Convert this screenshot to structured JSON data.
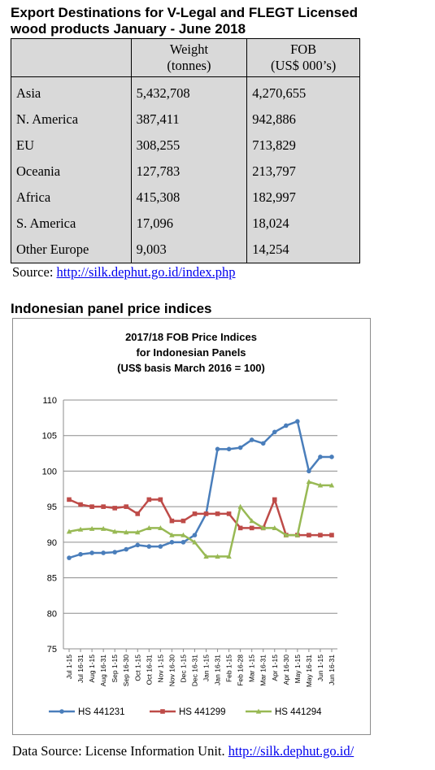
{
  "export_section": {
    "title_line1": "Export Destinations for V-Legal and FLEGT Licensed",
    "title_line2": "wood products January - June 2018",
    "headers": {
      "weight_line1": "Weight",
      "weight_line2": "(tonnes)",
      "fob_line1": "FOB",
      "fob_line2": "(US$ 000’s)"
    },
    "rows": [
      {
        "region": "Asia",
        "weight": "5,432,708",
        "fob": "4,270,655"
      },
      {
        "region": "N. America",
        "weight": "387,411",
        "fob": "942,886"
      },
      {
        "region": "EU",
        "weight": "308,255",
        "fob": "713,829"
      },
      {
        "region": "Oceania",
        "weight": "127,783",
        "fob": "213,797"
      },
      {
        "region": "Africa",
        "weight": "415,308",
        "fob": "182,997"
      },
      {
        "region": "S. America",
        "weight": "17,096",
        "fob": "18,024"
      },
      {
        "region": "Other Europe",
        "weight": "9,003",
        "fob": "14,254"
      }
    ],
    "source_label": "Source:",
    "source_url": "http://silk.dephut.go.id/index.php"
  },
  "panel_section": {
    "heading": "Indonesian panel price indices",
    "data_source_label": "Data Source: License Information Unit.",
    "data_source_url": "http://silk.dephut.go.id/"
  },
  "colors": {
    "hs441231": "#4a7ebb",
    "hs441299": "#be4b48",
    "hs441294": "#98b954",
    "grid": "#8c8c8c",
    "table_bg": "#d9d9d9"
  },
  "chart_data": {
    "type": "line",
    "title_lines": [
      "2017/18 FOB Price Indices",
      "for Indonesian Panels",
      "(US$ basis March 2016 = 100)"
    ],
    "categories": [
      "Jul 1-15",
      "Jul 16-31",
      "Aug 1-15",
      "Aug 16-31",
      "Sep 1-15",
      "Sep 16-30",
      "Oct 1-15",
      "Oct 16-31",
      "Nov 1-15",
      "Nov 16-30",
      "Dec 1-15",
      "Dec 16-31",
      "Jan 1-15",
      "Jan 16-31",
      "Feb 1-15",
      "Feb 16-28",
      "Mar 1-15",
      "Mar 16-31",
      "Apr 1-15",
      "Apr 16-30",
      "May 1-15",
      "May 16-31",
      "Jun 1-15",
      "Jun 16-31"
    ],
    "ylim": [
      75,
      110
    ],
    "yticks": [
      75,
      80,
      85,
      90,
      95,
      100,
      105,
      110
    ],
    "grid": "horizontal",
    "legend_position": "bottom",
    "series": [
      {
        "name": "HS 441231",
        "values": [
          87.8,
          88.3,
          88.5,
          88.5,
          88.6,
          89.0,
          89.6,
          89.4,
          89.4,
          90.0,
          90.0,
          91.0,
          94.0,
          103.1,
          103.1,
          103.3,
          104.4,
          103.9,
          105.5,
          106.4,
          107.0,
          100.0,
          102.0,
          102.0
        ]
      },
      {
        "name": "HS 441299",
        "values": [
          96.0,
          95.3,
          95.0,
          95.0,
          94.8,
          95.0,
          94.0,
          96.0,
          96.0,
          93.0,
          93.0,
          94.0,
          94.0,
          94.0,
          94.0,
          92.0,
          92.0,
          92.0,
          96.0,
          91.0,
          91.0,
          91.0,
          91.0,
          91.0
        ]
      },
      {
        "name": "HS 441294",
        "values": [
          91.5,
          91.8,
          91.9,
          91.9,
          91.5,
          91.4,
          91.4,
          92.0,
          92.0,
          91.0,
          91.0,
          90.0,
          88.0,
          88.0,
          88.0,
          95.0,
          93.0,
          92.0,
          92.0,
          91.0,
          91.0,
          98.5,
          98.0,
          98.0
        ]
      }
    ]
  }
}
